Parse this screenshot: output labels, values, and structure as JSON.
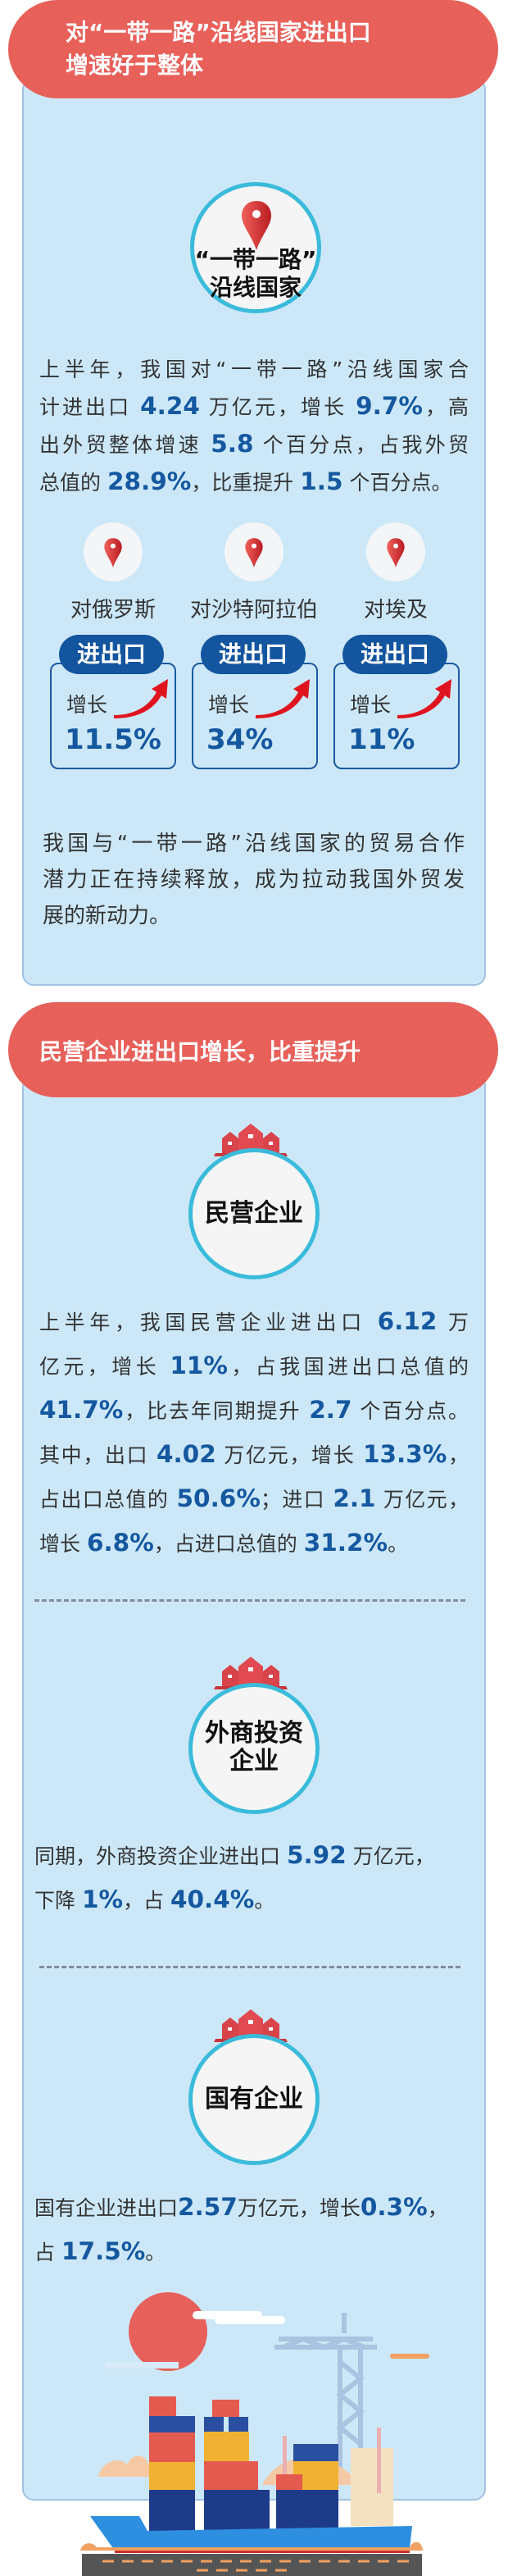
{
  "colors": {
    "header": "#e8605a",
    "card": "#cce8f8",
    "highlight": "#1558a0",
    "tag": "#13559e",
    "ring": "#3bbbdb"
  },
  "section1": {
    "title_lines": [
      "对“一带一路”沿线国家进出口",
      "增速好于整体"
    ],
    "badge_icon": "map-pin-icon",
    "badge_lines": [
      "“一带一路”",
      "沿线国家"
    ],
    "summary": [
      [
        {
          "t": "上半年，我国对“一带一路”沿线国家合"
        }
      ],
      [
        {
          "t": "计进出口 "
        },
        {
          "t": "4.24",
          "b": true
        },
        {
          "t": " 万亿元，增长 "
        },
        {
          "t": "9.7%",
          "b": true
        },
        {
          "t": "，高"
        }
      ],
      [
        {
          "t": "出外贸整体增速 "
        },
        {
          "t": "5.8",
          "b": true
        },
        {
          "t": " 个百分点，占我外贸"
        }
      ],
      [
        {
          "t": "总值的 "
        },
        {
          "t": "28.9%",
          "b": true
        },
        {
          "t": "，比重提升 "
        },
        {
          "t": "1.5",
          "b": true
        },
        {
          "t": " 个百分点。"
        }
      ]
    ],
    "countries": [
      {
        "label": "对俄罗斯",
        "tag": "进出口",
        "growth_label": "增长",
        "value": "11.5%"
      },
      {
        "label": "对沙特阿拉伯",
        "tag": "进出口",
        "growth_label": "增长",
        "value": "34%"
      },
      {
        "label": "对埃及",
        "tag": "进出口",
        "growth_label": "增长",
        "value": "11%"
      }
    ],
    "closing": [
      [
        {
          "t": "我国与“一带一路”沿线国家的贸易合作"
        }
      ],
      [
        {
          "t": "潜力正在持续释放，成为拉动我国外贸发"
        }
      ],
      [
        {
          "t": "展的新动力。"
        }
      ]
    ]
  },
  "section2": {
    "title": "民营企业进出口增长，比重提升",
    "groups": [
      {
        "badge_lines": [
          "民营企业"
        ],
        "paragraph": [
          [
            {
              "t": "上半年，我国民营企业进出口 "
            },
            {
              "t": "6.12",
              "b": true
            },
            {
              "t": " 万"
            }
          ],
          [
            {
              "t": "亿元，增长 "
            },
            {
              "t": "11%",
              "b": true
            },
            {
              "t": "，占我国进出口总值的"
            }
          ],
          [
            {
              "t": "41.7%",
              "b": true
            },
            {
              "t": "，比去年同期提升 "
            },
            {
              "t": "2.7",
              "b": true
            },
            {
              "t": " 个百分点。"
            }
          ],
          [
            {
              "t": "其中，出口 "
            },
            {
              "t": "4.02",
              "b": true
            },
            {
              "t": " 万亿元，增长 "
            },
            {
              "t": "13.3%",
              "b": true
            },
            {
              "t": "，"
            }
          ],
          [
            {
              "t": "占出口总值的 "
            },
            {
              "t": "50.6%",
              "b": true
            },
            {
              "t": "；进口 "
            },
            {
              "t": "2.1",
              "b": true
            },
            {
              "t": " 万亿元，"
            }
          ],
          [
            {
              "t": "增长 "
            },
            {
              "t": "6.8%",
              "b": true
            },
            {
              "t": "，占进口总值的 "
            },
            {
              "t": "31.2%",
              "b": true
            },
            {
              "t": "。"
            }
          ]
        ]
      },
      {
        "badge_lines": [
          "外商投资",
          "企业"
        ],
        "paragraph": [
          [
            {
              "t": "同期，外商投资企业进出口 "
            },
            {
              "t": "5.92",
              "b": true
            },
            {
              "t": " 万亿元，"
            }
          ],
          [
            {
              "t": "下降 "
            },
            {
              "t": "1%",
              "b": true
            },
            {
              "t": "，占 "
            },
            {
              "t": "40.4%",
              "b": true
            },
            {
              "t": "。"
            }
          ]
        ]
      },
      {
        "badge_lines": [
          "国有企业"
        ],
        "paragraph": [
          [
            {
              "t": "国有企业进出口"
            },
            {
              "t": "2.57",
              "b": true
            },
            {
              "t": "万亿元，增长"
            },
            {
              "t": "0.3%",
              "b": true
            },
            {
              "t": "，"
            }
          ],
          [
            {
              "t": "占 "
            },
            {
              "t": "17.5%",
              "b": true
            },
            {
              "t": "。"
            }
          ]
        ]
      }
    ]
  }
}
